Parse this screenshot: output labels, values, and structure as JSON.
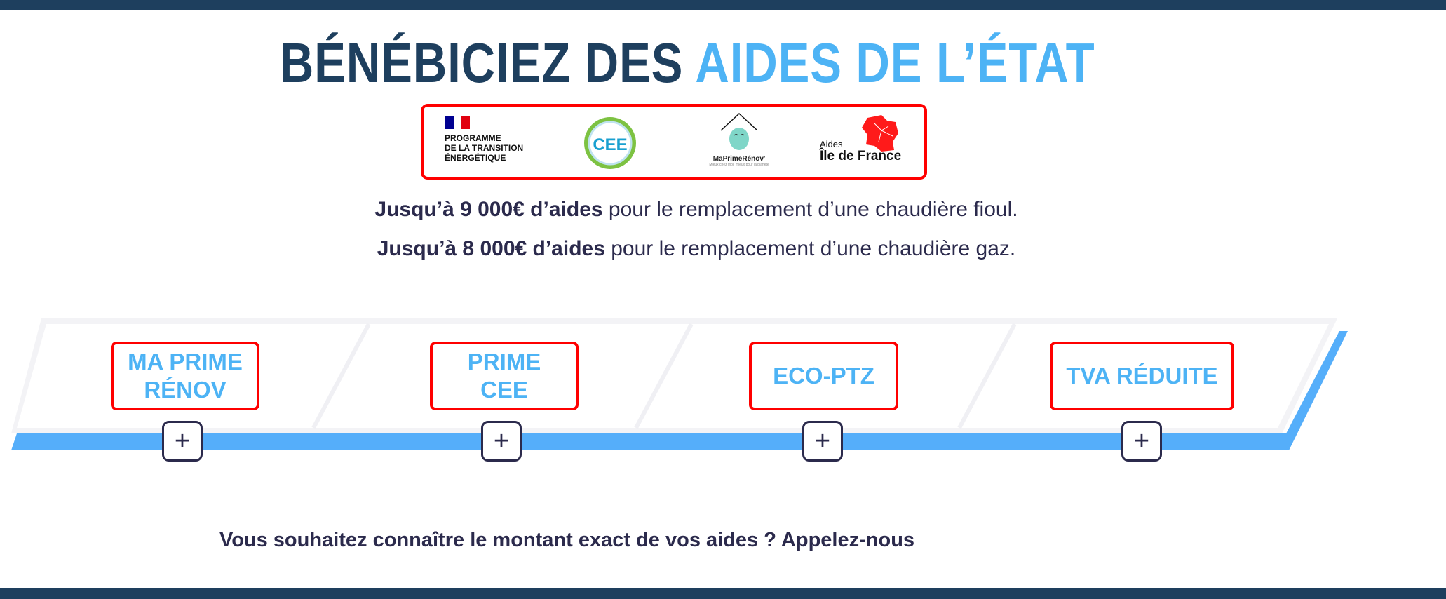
{
  "title": {
    "part1": "BÉNÉBICIEZ DES ",
    "part2": "AIDES DE L’ÉTAT"
  },
  "colors": {
    "navy": "#1e3f5e",
    "accent_blue": "#4db3f5",
    "highlight_red": "#ff0000",
    "text": "#2b2a4c"
  },
  "logos": {
    "programme": {
      "lines": [
        "PROGRAMME",
        "DE LA TRANSITION",
        "ÉNERGÉTIQUE"
      ],
      "icon": "french-flag-icon"
    },
    "cee": {
      "label": "CEE",
      "icon": "cee-badge-icon"
    },
    "maprimerenov": {
      "name": "MaPrimeRénov'",
      "tagline": "Mieux chez moi, mieux pour la planète",
      "icon": "house-face-icon"
    },
    "idf": {
      "aides": "Aides",
      "name": "Île de France",
      "icon": "idf-map-icon"
    }
  },
  "lines": [
    {
      "bold": "Jusqu’à 9 000€ d’aides",
      "rest": " pour le remplacement d’une chaudière fioul."
    },
    {
      "bold": "Jusqu’à 8 000€ d’aides",
      "rest": " pour le remplacement d’une chaudière gaz."
    }
  ],
  "aids": [
    {
      "label_line1": "MA PRIME",
      "label_line2": "RÉNOV"
    },
    {
      "label_line1": "PRIME",
      "label_line2": "CEE"
    },
    {
      "label_line1": "ECO-PTZ",
      "label_line2": ""
    },
    {
      "label_line1": "TVA RÉDUITE",
      "label_line2": ""
    }
  ],
  "plus_label": "+",
  "cta": "Vous souhaitez connaître le montant exact de vos aides ? Appelez-nous"
}
